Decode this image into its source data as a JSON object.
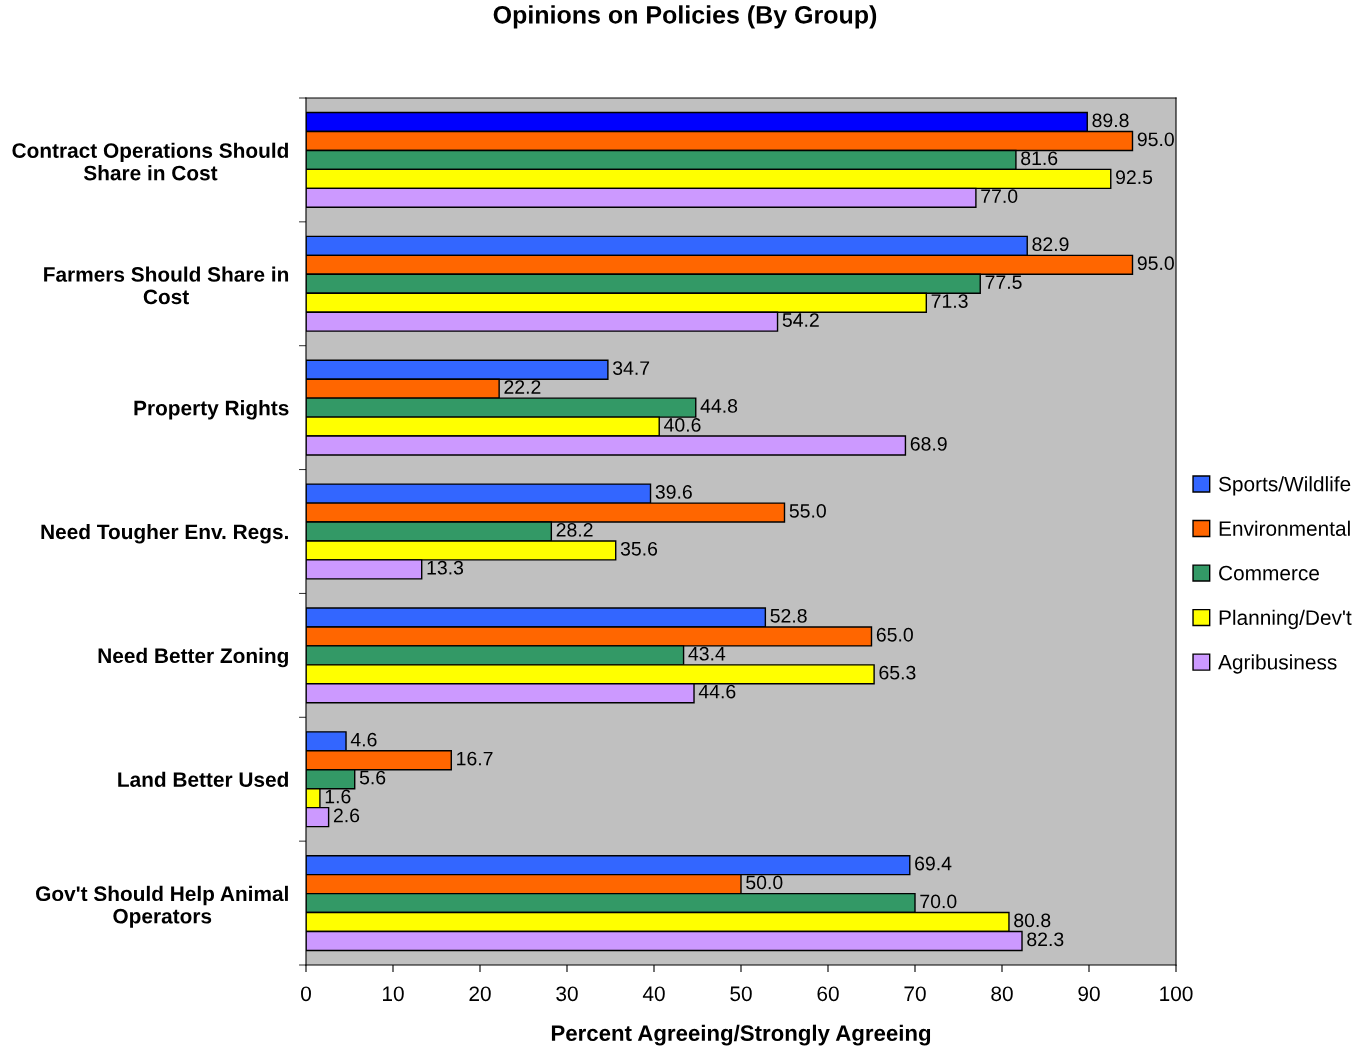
{
  "chart_data": {
    "type": "bar",
    "orientation": "horizontal",
    "title": "Opinions on Policies (By Group)",
    "xlabel": "Percent Agreeing/Strongly Agreeing",
    "categories": [
      "Contract Operations Should Share in Cost",
      "Farmers Should Share in Cost",
      "Property Rights",
      "Need Tougher Env. Regs.",
      "Need Better Zoning",
      "Land Better Used",
      "Gov't Should Help Animal Operators"
    ],
    "series": [
      {
        "name": "Sports/Wildlife",
        "color": "#3366ff",
        "colors": [
          "#0000ff",
          "#3366ff",
          "#3366ff",
          "#3366ff",
          "#3366ff",
          "#3366ff",
          "#3366ff"
        ],
        "values": [
          89.8,
          82.9,
          34.7,
          39.6,
          52.8,
          4.6,
          69.4
        ],
        "value_labels": [
          "89.8",
          "82.9",
          "34.7",
          "39.6",
          "52.8",
          "4.6",
          "69.4"
        ]
      },
      {
        "name": "Environmental",
        "color": "#ff6600",
        "values": [
          95.0,
          95.0,
          22.2,
          55.0,
          65.0,
          16.7,
          50.0
        ],
        "value_labels": [
          "95.0",
          "95.0",
          "22.2",
          "55.0",
          "65.0",
          "16.7",
          "50.0"
        ]
      },
      {
        "name": "Commerce",
        "color": "#339966",
        "values": [
          81.6,
          77.5,
          44.8,
          28.2,
          43.4,
          5.6,
          70.0
        ],
        "value_labels": [
          "81.6",
          "77.5",
          "44.8",
          "28.2",
          "43.4",
          "5.6",
          "70.0"
        ]
      },
      {
        "name": "Planning/Dev't",
        "color": "#ffff00",
        "values": [
          92.5,
          71.3,
          40.6,
          35.6,
          65.3,
          1.6,
          80.8
        ],
        "value_labels": [
          "92.5",
          "71.3",
          "40.6",
          "35.6",
          "65.3",
          "1.6",
          "80.8"
        ]
      },
      {
        "name": "Agribusiness",
        "color": "#cc99ff",
        "values": [
          77.0,
          54.2,
          68.9,
          13.3,
          44.6,
          2.6,
          82.3
        ],
        "value_labels": [
          "77.0",
          "54.2",
          "68.9",
          "13.3",
          "44.6",
          "2.6",
          "82.3"
        ]
      }
    ],
    "xlim": [
      0,
      100
    ],
    "xticks": [
      0,
      10,
      20,
      30,
      40,
      50,
      60,
      70,
      80,
      90,
      100
    ],
    "grid": false,
    "legend": "right"
  }
}
